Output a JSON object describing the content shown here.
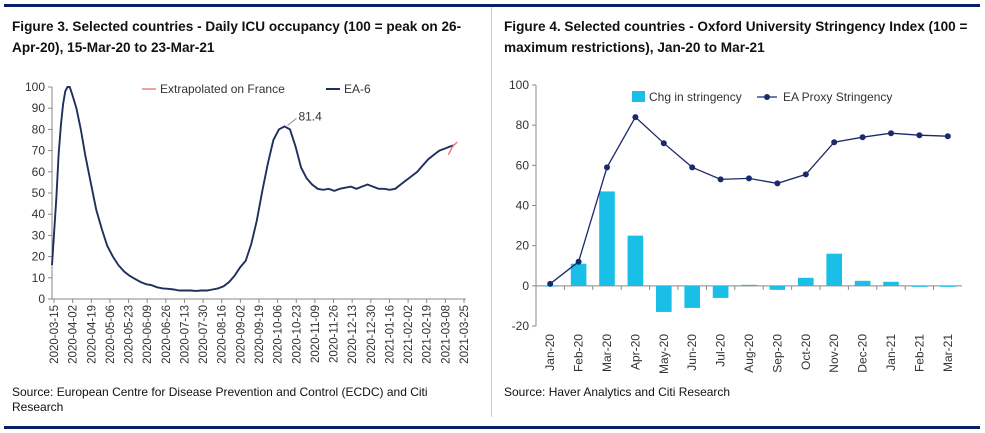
{
  "charts": [
    {
      "figure_title": "Figure 3. Selected countries - Daily ICU occupancy (100 = peak on 26-Apr-20), 15-Mar-20 to 23-Mar-21",
      "source": "Source: European Centre for Disease Prevention and Control (ECDC) and Citi Research"
    },
    {
      "figure_title": "Figure 4. Selected countries - Oxford University Stringency Index (100 =  maximum restrictions), Jan-20 to Mar-21",
      "source": "Source: Haver Analytics and Citi Research"
    }
  ],
  "chart_data": [
    {
      "type": "line",
      "title": "Figure 3. Selected countries - Daily ICU occupancy (100 = peak on 26-Apr-20), 15-Mar-20 to 23-Mar-21",
      "xlabel": "",
      "ylabel": "",
      "ylim": [
        0,
        100
      ],
      "yticks": [
        0,
        10,
        20,
        30,
        40,
        50,
        60,
        70,
        80,
        90,
        100
      ],
      "grid": false,
      "legend_position": "top-right",
      "categories": [
        "2020-03-15",
        "2020-04-02",
        "2020-04-19",
        "2020-05-06",
        "2020-05-23",
        "2020-06-09",
        "2020-06-26",
        "2020-07-13",
        "2020-07-30",
        "2020-08-16",
        "2020-09-02",
        "2020-09-19",
        "2020-10-06",
        "2020-10-23",
        "2020-11-09",
        "2020-11-26",
        "2020-12-13",
        "2020-12-30",
        "2021-01-16",
        "2021-02-02",
        "2021-02-19",
        "2021-03-08",
        "2021-03-25"
      ],
      "series": [
        {
          "name": "EA-6",
          "color": "#1f2f5e",
          "x": [
            0,
            4,
            6,
            8,
            10,
            12,
            14,
            16,
            18,
            22,
            26,
            30,
            35,
            40,
            45,
            50,
            55,
            60,
            65,
            70,
            75,
            80,
            85,
            90,
            95,
            100,
            105,
            110,
            115,
            120,
            125,
            130,
            135,
            140,
            145,
            150,
            155,
            160,
            165,
            170,
            175,
            180,
            185,
            190,
            195,
            200,
            205,
            210,
            215,
            220,
            225,
            230,
            235,
            240,
            245,
            250,
            255,
            260,
            265,
            270,
            275,
            280,
            285,
            290,
            295,
            300,
            305,
            310,
            315,
            320,
            325,
            330,
            335,
            340,
            345,
            350,
            355,
            360,
            363
          ],
          "values": [
            16,
            48,
            68,
            82,
            92,
            98,
            100,
            100,
            97,
            90,
            80,
            68,
            55,
            42,
            33,
            25,
            20,
            16,
            13,
            11,
            9.5,
            8,
            7,
            6.5,
            5.5,
            5,
            4.8,
            4.5,
            4,
            4,
            4,
            3.8,
            4,
            4,
            4.5,
            5,
            6,
            8,
            11,
            15,
            18,
            26,
            37,
            51,
            64,
            75,
            80,
            81.4,
            80,
            72,
            62,
            57,
            54,
            52,
            51.5,
            52,
            51,
            52,
            52.5,
            53,
            52,
            53,
            54,
            53,
            52,
            52,
            51.5,
            52,
            54,
            56,
            58,
            60,
            63,
            66,
            68,
            70,
            71,
            72,
            72.5
          ]
        },
        {
          "name": "Extrapolated on France",
          "color": "#e8787a",
          "x": [
            358,
            360,
            362,
            364,
            366
          ],
          "values": [
            68,
            70,
            72,
            73,
            74
          ]
        }
      ],
      "annotations": [
        {
          "text": "81.4",
          "x": 210,
          "y": 81.4
        }
      ]
    },
    {
      "type": "bar+line",
      "title": "Figure 4. Selected countries - Oxford University Stringency Index (100 =  maximum restrictions), Jan-20 to Mar-21",
      "xlabel": "",
      "ylabel": "",
      "ylim": [
        -20,
        100
      ],
      "yticks": [
        -20,
        0,
        20,
        40,
        60,
        80,
        100
      ],
      "grid": false,
      "legend_position": "top",
      "categories": [
        "Jan-20",
        "Feb-20",
        "Mar-20",
        "Apr-20",
        "May-20",
        "Jun-20",
        "Jul-20",
        "Aug-20",
        "Sep-20",
        "Oct-20",
        "Nov-20",
        "Dec-20",
        "Jan-21",
        "Feb-21",
        "Mar-21"
      ],
      "series": [
        {
          "name": "Chg in stringency",
          "type": "bar",
          "color": "#19bfe6",
          "values": [
            0,
            11,
            47,
            25,
            -13,
            -11,
            -6,
            0.5,
            -2,
            4,
            16,
            2.5,
            2,
            -0.5,
            -0.5
          ]
        },
        {
          "name": "EA Proxy Stringency",
          "type": "line",
          "color": "#1a2a6c",
          "values": [
            1,
            12,
            59,
            84,
            71,
            59,
            53,
            53.5,
            51,
            55.5,
            71.5,
            74,
            76,
            75,
            74.5
          ]
        }
      ]
    }
  ]
}
